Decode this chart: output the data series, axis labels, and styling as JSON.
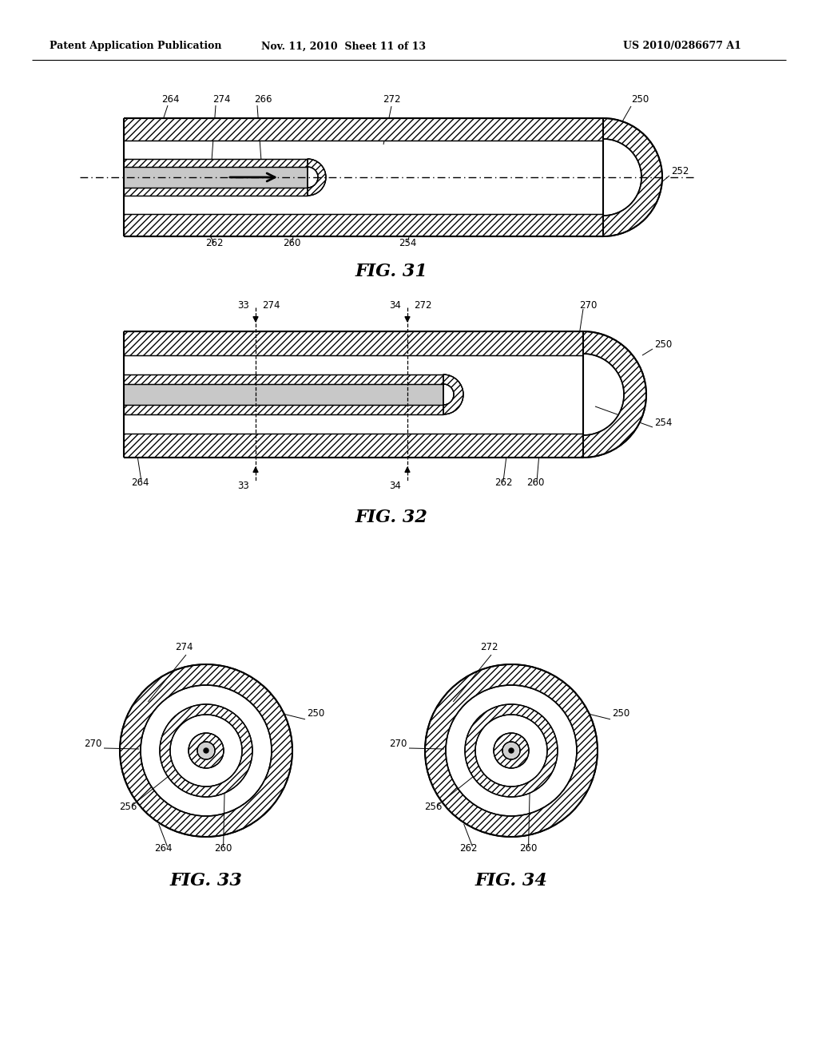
{
  "header_left": "Patent Application Publication",
  "header_mid": "Nov. 11, 2010  Sheet 11 of 13",
  "header_right": "US 2010/0286677 A1",
  "fig31_title": "FIG. 31",
  "fig32_title": "FIG. 32",
  "fig33_title": "FIG. 33",
  "fig34_title": "FIG. 34",
  "bg_color": "#ffffff"
}
